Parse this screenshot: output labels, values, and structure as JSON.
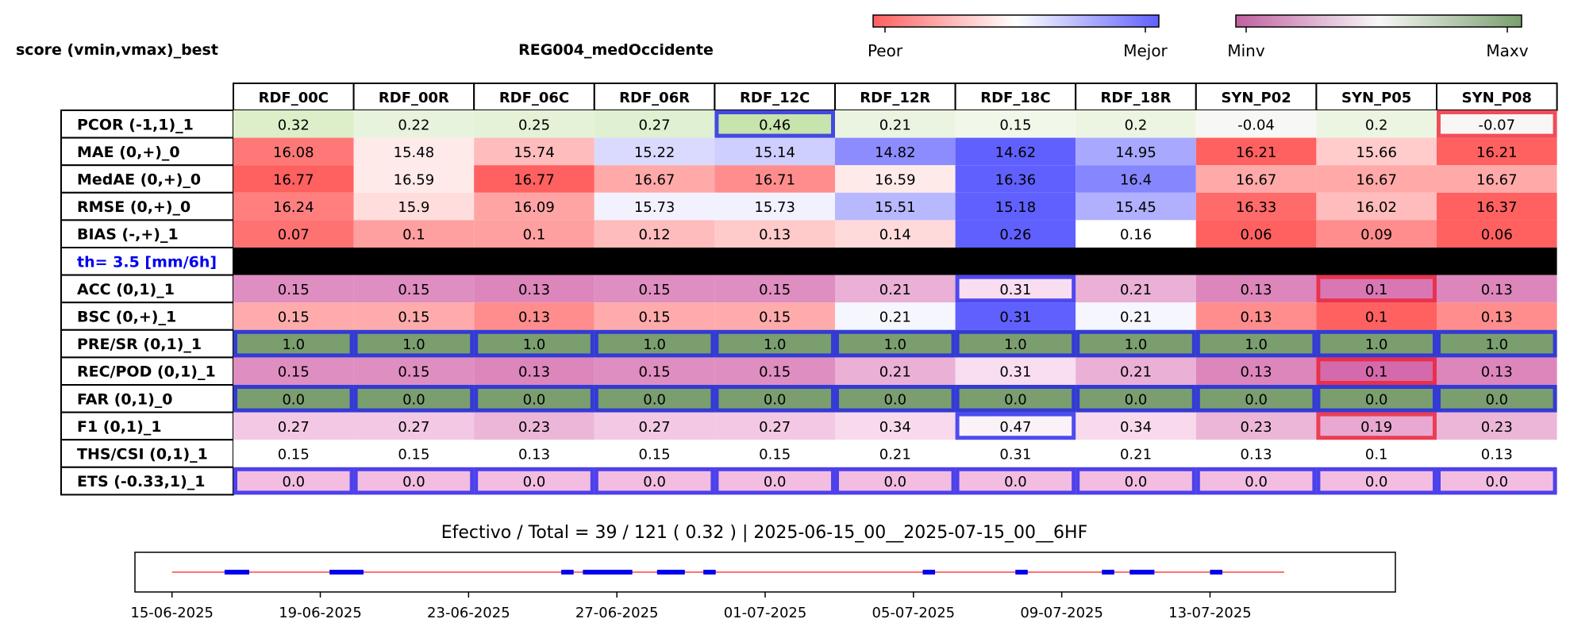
{
  "header": {
    "left_title": "score (vmin,vmax)_best",
    "center_title": "REG004_medOccidente"
  },
  "legends": {
    "rank": {
      "low_label": "Peor",
      "high_label": "Mejor",
      "colors": [
        "#ff6060",
        "#ffffff",
        "#6060ff"
      ]
    },
    "value": {
      "low_label": "Minv",
      "high_label": "Maxv",
      "colors": [
        "#c060a0",
        "#f7f7f7",
        "#7a9e6e"
      ]
    }
  },
  "colors": {
    "best_outline": "#2222ee",
    "worst_outline": "#ee2233",
    "separator": "#000000",
    "threshold_text": "#0000ee",
    "timeline_line": "#ff4444",
    "timeline_marks": "#0000ee"
  },
  "chart_data": {
    "type": "heatmap",
    "columns": [
      "RDF_00C",
      "RDF_00R",
      "RDF_06C",
      "RDF_06R",
      "RDF_12C",
      "RDF_12R",
      "RDF_18C",
      "RDF_18R",
      "SYN_P02",
      "SYN_P05",
      "SYN_P08"
    ],
    "rows": [
      {
        "label": "PCOR (-1,1)_1",
        "scheme": "value",
        "values": [
          "0.32",
          "0.22",
          "0.25",
          "0.27",
          "0.46",
          "0.21",
          "0.15",
          "0.2",
          "-0.04",
          "0.2",
          "-0.07"
        ],
        "colors": [
          "#dcefc9",
          "#e8f3dd",
          "#e5f2d8",
          "#e0f0d2",
          "#c6e4ab",
          "#eaf4e0",
          "#f1f8ea",
          "#ebf5e1",
          "#f7f8f5",
          "#ebf5e1",
          "#f8f7f6"
        ],
        "best": [
          4
        ],
        "worst": [
          10
        ]
      },
      {
        "label": "MAE (0,+)_0",
        "scheme": "rank",
        "values": [
          "16.08",
          "15.48",
          "15.74",
          "15.22",
          "15.14",
          "14.82",
          "14.62",
          "14.95",
          "16.21",
          "15.66",
          "16.21"
        ],
        "colors": [
          "#ff7878",
          "#ffeaea",
          "#ffbcbc",
          "#dadaff",
          "#ceceff",
          "#8c8cff",
          "#6060ff",
          "#a8a8ff",
          "#ff6060",
          "#ffcbcb",
          "#ff6060"
        ],
        "best": [],
        "worst": []
      },
      {
        "label": "MedAE (0,+)_0",
        "scheme": "rank",
        "values": [
          "16.77",
          "16.59",
          "16.77",
          "16.67",
          "16.71",
          "16.59",
          "16.36",
          "16.4",
          "16.67",
          "16.67",
          "16.67"
        ],
        "colors": [
          "#ff6060",
          "#ffeaea",
          "#ff6060",
          "#ffa9a9",
          "#ff8d8d",
          "#ffeaea",
          "#6060ff",
          "#8686ff",
          "#ffa9a9",
          "#ffa9a9",
          "#ffa9a9"
        ],
        "best": [],
        "worst": []
      },
      {
        "label": "RMSE (0,+)_0",
        "scheme": "rank",
        "values": [
          "16.24",
          "15.9",
          "16.09",
          "15.73",
          "15.73",
          "15.51",
          "15.18",
          "15.45",
          "16.33",
          "16.02",
          "16.37"
        ],
        "colors": [
          "#ff7f7f",
          "#ffdddd",
          "#ffa4a4",
          "#f2f2ff",
          "#f2f2ff",
          "#b8b8ff",
          "#6060ff",
          "#b0b0ff",
          "#ff6a6a",
          "#ffbcbc",
          "#ff6060"
        ],
        "best": [],
        "worst": []
      },
      {
        "label": "BIAS (-,+)_1",
        "scheme": "rank",
        "values": [
          "0.07",
          "0.1",
          "0.1",
          "0.12",
          "0.13",
          "0.14",
          "0.26",
          "0.16",
          "0.06",
          "0.09",
          "0.06"
        ],
        "colors": [
          "#ff7272",
          "#ffa0a0",
          "#ffa0a0",
          "#ffbcbc",
          "#ffcaca",
          "#ffdada",
          "#6060ff",
          "#ffffff",
          "#ff6060",
          "#ff8d8d",
          "#ff6060"
        ],
        "best": [],
        "worst": []
      },
      {
        "label": "th= 3.5 [mm/6h]",
        "separator": true,
        "values": [],
        "colors": [],
        "best": [],
        "worst": []
      },
      {
        "label": "ACC (0,1)_1",
        "scheme": "value",
        "values": [
          "0.15",
          "0.15",
          "0.13",
          "0.15",
          "0.15",
          "0.21",
          "0.31",
          "0.21",
          "0.13",
          "0.1",
          "0.13"
        ],
        "colors": [
          "#df8ec1",
          "#df8ec1",
          "#dc86bc",
          "#df8ec1",
          "#df8ec1",
          "#eab0d5",
          "#f8def0",
          "#eab0d5",
          "#dc86bc",
          "#d877b3",
          "#dc86bc"
        ],
        "best": [
          6
        ],
        "worst": [
          9
        ]
      },
      {
        "label": "BSC (0,+)_1",
        "scheme": "rank",
        "values": [
          "0.15",
          "0.15",
          "0.13",
          "0.15",
          "0.15",
          "0.21",
          "0.31",
          "0.21",
          "0.13",
          "0.1",
          "0.13"
        ],
        "colors": [
          "#ffabab",
          "#ffabab",
          "#ff8d8d",
          "#ffabab",
          "#ffabab",
          "#f6f6ff",
          "#6060ff",
          "#f6f6ff",
          "#ff8d8d",
          "#ff6060",
          "#ff8d8d"
        ],
        "best": [],
        "worst": []
      },
      {
        "label": "PRE/SR (0,1)_1",
        "scheme": "value",
        "values": [
          "1.0",
          "1.0",
          "1.0",
          "1.0",
          "1.0",
          "1.0",
          "1.0",
          "1.0",
          "1.0",
          "1.0",
          "1.0"
        ],
        "colors": [
          "#7a9e6e",
          "#7a9e6e",
          "#7a9e6e",
          "#7a9e6e",
          "#7a9e6e",
          "#7a9e6e",
          "#7a9e6e",
          "#7a9e6e",
          "#7a9e6e",
          "#7a9e6e",
          "#7a9e6e"
        ],
        "best": [
          0,
          1,
          2,
          3,
          4,
          5,
          6,
          7,
          8,
          9,
          10
        ],
        "worst": []
      },
      {
        "label": "REC/POD (0,1)_1",
        "scheme": "value",
        "values": [
          "0.15",
          "0.15",
          "0.13",
          "0.15",
          "0.15",
          "0.21",
          "0.31",
          "0.21",
          "0.13",
          "0.1",
          "0.13"
        ],
        "colors": [
          "#df8ec1",
          "#df8ec1",
          "#dc86bc",
          "#df8ec1",
          "#df8ec1",
          "#eab0d5",
          "#f8def0",
          "#eab0d5",
          "#dc86bc",
          "#d46aab",
          "#dc86bc"
        ],
        "best": [],
        "worst": [
          9
        ]
      },
      {
        "label": "FAR (0,1)_0",
        "scheme": "value",
        "values": [
          "0.0",
          "0.0",
          "0.0",
          "0.0",
          "0.0",
          "0.0",
          "0.0",
          "0.0",
          "0.0",
          "0.0",
          "0.0"
        ],
        "colors": [
          "#7a9e6e",
          "#7a9e6e",
          "#7a9e6e",
          "#7a9e6e",
          "#7a9e6e",
          "#7a9e6e",
          "#7a9e6e",
          "#7a9e6e",
          "#7a9e6e",
          "#7a9e6e",
          "#7a9e6e"
        ],
        "best": [
          0,
          1,
          2,
          3,
          4,
          5,
          6,
          7,
          8,
          9,
          10
        ],
        "worst": []
      },
      {
        "label": "F1 (0,1)_1",
        "scheme": "value",
        "values": [
          "0.27",
          "0.27",
          "0.23",
          "0.27",
          "0.27",
          "0.34",
          "0.47",
          "0.34",
          "0.23",
          "0.19",
          "0.23"
        ],
        "colors": [
          "#f3c8e4",
          "#f3c8e4",
          "#ecb6d9",
          "#f3c8e4",
          "#f3c8e4",
          "#f8daec",
          "#fbf2f8",
          "#f8daec",
          "#ecb6d9",
          "#e8a8d1",
          "#ecb6d9"
        ],
        "best": [
          6
        ],
        "worst": [
          9
        ]
      },
      {
        "label": "THS/CSI (0,1)_1",
        "scheme": "value",
        "values": [
          "0.15",
          "0.15",
          "0.13",
          "0.15",
          "0.15",
          "0.21",
          "0.31",
          "0.21",
          "0.13",
          "0.1",
          "0.13"
        ],
        "colors": [
          "#ffffff",
          "#ffffff",
          "#ffffff",
          "#ffffff",
          "#ffffff",
          "#ffffff",
          "#ffffff",
          "#ffffff",
          "#ffffff",
          "#ffffff",
          "#ffffff"
        ],
        "best": [],
        "worst": []
      },
      {
        "label": "ETS (-0.33,1)_1",
        "scheme": "value",
        "values": [
          "0.0",
          "0.0",
          "0.0",
          "0.0",
          "0.0",
          "0.0",
          "0.0",
          "0.0",
          "0.0",
          "0.0",
          "0.0"
        ],
        "colors": [
          "#f2bde0",
          "#f2bde0",
          "#f2bde0",
          "#f2bde0",
          "#f2bde0",
          "#f2bde0",
          "#f2bde0",
          "#f2bde0",
          "#f2bde0",
          "#f2bde0",
          "#f2bde0"
        ],
        "best": [
          0,
          1,
          2,
          3,
          4,
          5,
          6,
          7,
          8,
          9,
          10
        ],
        "worst": []
      }
    ],
    "summary": "Efectivo / Total  =  39 / 121 ( 0.32 ) | 2025-06-15_00__2025-07-15_00__6HF",
    "timeline": {
      "type": "timeline",
      "x_range": [
        "2025-06-14",
        "2025-07-18"
      ],
      "line_span": [
        "2025-06-15",
        "2025-07-15"
      ],
      "ticks": [
        "15-06-2025",
        "19-06-2025",
        "23-06-2025",
        "27-06-2025",
        "01-07-2025",
        "05-07-2025",
        "09-07-2025",
        "13-07-2025"
      ],
      "tick_dates": [
        "2025-06-15",
        "2025-06-19",
        "2025-06-23",
        "2025-06-27",
        "2025-07-01",
        "2025-07-05",
        "2025-07-09",
        "2025-07-13"
      ],
      "segments": [
        [
          "2025-06-16T10:00",
          "2025-06-17T02:00"
        ],
        [
          "2025-06-19T06:00",
          "2025-06-20T04:00"
        ],
        [
          "2025-06-25T12:00",
          "2025-06-25T20:00"
        ],
        [
          "2025-06-26T02:00",
          "2025-06-27T10:00"
        ],
        [
          "2025-06-28T02:00",
          "2025-06-28T20:00"
        ],
        [
          "2025-06-29T08:00",
          "2025-06-29T16:00"
        ],
        [
          "2025-07-05T06:00",
          "2025-07-05T14:00"
        ],
        [
          "2025-07-07T18:00",
          "2025-07-08T02:00"
        ],
        [
          "2025-07-10T02:00",
          "2025-07-10T10:00"
        ],
        [
          "2025-07-10T20:00",
          "2025-07-11T12:00"
        ],
        [
          "2025-07-13T00:00",
          "2025-07-13T08:00"
        ]
      ]
    }
  }
}
